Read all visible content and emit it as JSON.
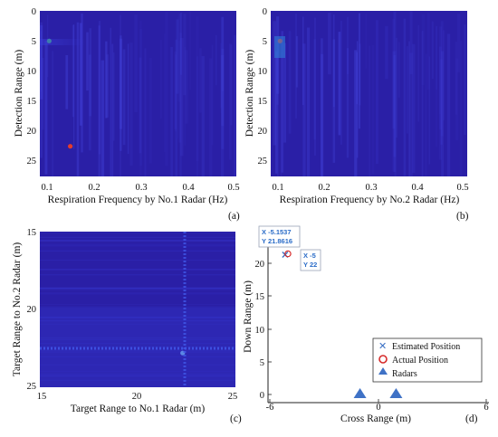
{
  "figure": {
    "panels": [
      {
        "id": "a",
        "tag": "(a)",
        "xlabel": "Respiration Frequency by No.1 Radar (Hz)",
        "ylabel": "Detection Range (m)",
        "xticks": [
          "0.1",
          "0.2",
          "0.3",
          "0.4",
          "0.5"
        ],
        "yticks": [
          "0",
          "5",
          "10",
          "15",
          "20",
          "25"
        ]
      },
      {
        "id": "b",
        "tag": "(b)",
        "xlabel": "Respiration Frequency by No.2 Radar (Hz)",
        "ylabel": "Detection Range (m)",
        "xticks": [
          "0.1",
          "0.2",
          "0.3",
          "0.4",
          "0.5"
        ],
        "yticks": [
          "0",
          "5",
          "10",
          "15",
          "20",
          "25"
        ]
      },
      {
        "id": "c",
        "tag": "(c)",
        "xlabel": "Target Range to No.1 Radar (m)",
        "ylabel": "Target Range to No.2 Radar (m)",
        "xticks": [
          "15",
          "20",
          "25"
        ],
        "yticks": [
          "15",
          "20",
          "25"
        ]
      },
      {
        "id": "d",
        "tag": "(d)",
        "xlabel": "Cross Range (m)",
        "ylabel": "Down Range (m)",
        "xticks": [
          "-6",
          "0",
          "6"
        ],
        "yticks": [
          "0",
          "5",
          "10",
          "15",
          "20"
        ],
        "legend": [
          "Estimated Position",
          "Actual Position",
          "Radars"
        ],
        "tip_estimated": {
          "x": "X -5.1537",
          "y": "Y 21.8616"
        },
        "tip_actual": {
          "x": "X -5",
          "y": "Y 22"
        }
      }
    ]
  },
  "chart_data": [
    {
      "type": "heatmap",
      "panel": "a",
      "xlabel": "Respiration Frequency by No.1 Radar (Hz)",
      "ylabel": "Detection Range (m)",
      "xlim": [
        0.08,
        0.5
      ],
      "ylim": [
        27.5,
        0
      ],
      "x_ticks": [
        0.1,
        0.2,
        0.3,
        0.4,
        0.5
      ],
      "y_ticks": [
        0,
        5,
        10,
        15,
        20,
        25
      ],
      "highlights": [
        {
          "x": 0.1,
          "y": 5,
          "color": "#3fb08a"
        },
        {
          "x": 0.145,
          "y": 22.5,
          "color": "#e23b2e"
        }
      ],
      "colormap": [
        "#2a1fa6",
        "#3b38d6",
        "#2e9fe0",
        "#3fb08a"
      ]
    },
    {
      "type": "heatmap",
      "panel": "b",
      "xlabel": "Respiration Frequency by No.2 Radar (Hz)",
      "ylabel": "Detection Range (m)",
      "xlim": [
        0.08,
        0.5
      ],
      "ylim": [
        27.5,
        0
      ],
      "x_ticks": [
        0.1,
        0.2,
        0.3,
        0.4,
        0.5
      ],
      "y_ticks": [
        0,
        5,
        10,
        15,
        20,
        25
      ],
      "highlights": [
        {
          "x": 0.1,
          "y": 5,
          "color": "#e23b2e"
        }
      ],
      "colormap": [
        "#2a1fa6",
        "#3b38d6",
        "#2e9fe0",
        "#3fb08a"
      ]
    },
    {
      "type": "heatmap",
      "panel": "c",
      "xlabel": "Target Range to No.1 Radar (m)",
      "ylabel": "Target Range to No.2 Radar (m)",
      "xlim": [
        15,
        25
      ],
      "ylim": [
        15,
        25
      ],
      "x_ticks": [
        15,
        20,
        25
      ],
      "y_ticks": [
        15,
        20,
        25
      ],
      "highlights": [
        {
          "x": 22.3,
          "y": 22.8,
          "color": "#7fd0ff"
        }
      ],
      "colormap": [
        "#2a1fa6",
        "#3b38d6",
        "#2e9fe0"
      ]
    },
    {
      "type": "scatter",
      "panel": "d",
      "xlabel": "Cross Range (m)",
      "ylabel": "Down Range (m)",
      "xlim": [
        -6,
        6
      ],
      "ylim": [
        0,
        23.5
      ],
      "x_ticks": [
        -6,
        0,
        6
      ],
      "y_ticks": [
        0,
        5,
        10,
        15,
        20
      ],
      "legend_position": "bottom-right",
      "series": [
        {
          "name": "Estimated Position",
          "marker": "x",
          "color": "#3a6fc4",
          "points": [
            [
              -5.1537,
              21.8616
            ]
          ]
        },
        {
          "name": "Actual Position",
          "marker": "o",
          "color": "#d62a2a",
          "points": [
            [
              -5,
              22
            ]
          ]
        },
        {
          "name": "Radars",
          "marker": "triangle",
          "color": "#3f72c6",
          "points": [
            [
              -1,
              0
            ],
            [
              1,
              0
            ]
          ]
        }
      ]
    }
  ]
}
